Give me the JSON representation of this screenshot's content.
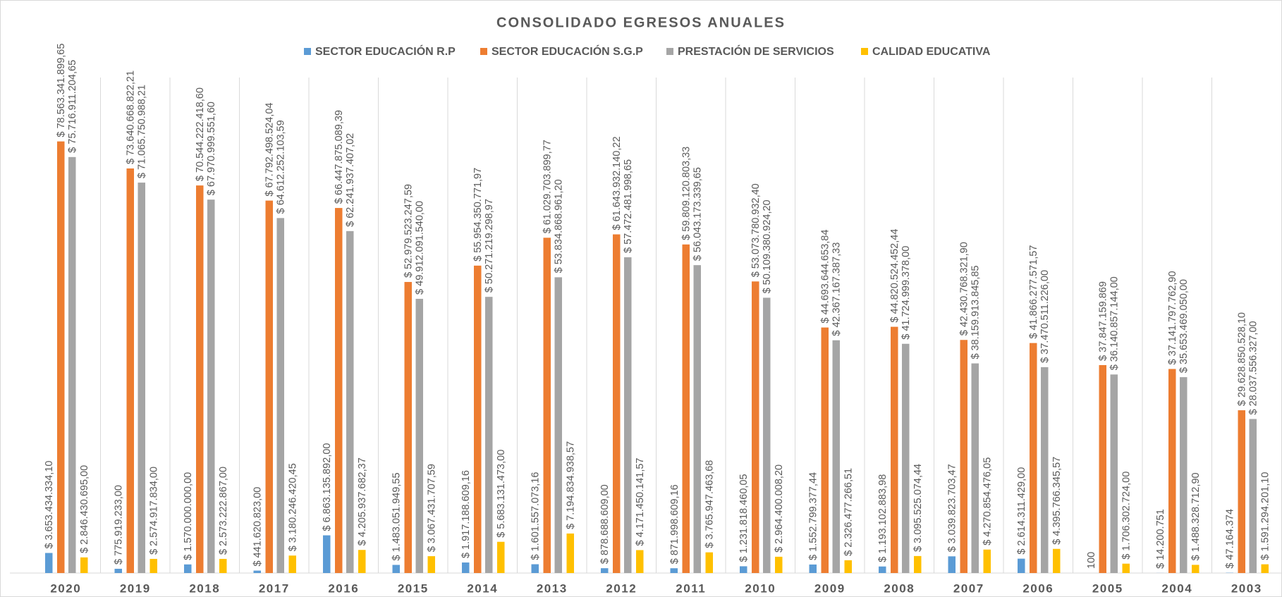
{
  "chart_data": {
    "type": "bar",
    "title": "CONSOLIDADO EGRESOS  ANUALES",
    "categories": [
      "2020",
      "2019",
      "2018",
      "2017",
      "2016",
      "2015",
      "2014",
      "2013",
      "2012",
      "2011",
      "2010",
      "2009",
      "2008",
      "2007",
      "2006",
      "2005",
      "2004",
      "2003"
    ],
    "legend": "top",
    "series": [
      {
        "name": "SECTOR EDUCACIÓN R.P",
        "color": "#5b9bd5",
        "values": [
          3653434334.1,
          775919233.0,
          1570000000.0,
          441620823.0,
          6863135892.0,
          1483051949.55,
          1917188609.16,
          1601557073.16,
          878688609.0,
          871998609.16,
          1231818460.05,
          1552799377.44,
          1193102883.98,
          3039823703.47,
          2614311429.0,
          100,
          14200751,
          47164374
        ],
        "value_labels": [
          "$ 3.653.434.334,10",
          "$ 775.919.233,00",
          "$ 1.570.000.000,00",
          "$ 441.620.823,00",
          "$ 6.863.135.892,00",
          "$ 1.483.051.949,55",
          "$ 1.917.188.609,16",
          "$ 1.601.557.073,16",
          "$ 878.688.609,00",
          "$ 871.998.609,16",
          "$ 1.231.818.460,05",
          "$ 1.552.799.377,44",
          "$ 1.193.102.883,98",
          "$ 3.039.823.703,47",
          "$ 2.614.311.429,00",
          "100",
          "$ 14.200.751",
          "$ 47.164.374"
        ]
      },
      {
        "name": "SECTOR EDUCACIÓN S.G.P",
        "color": "#ed7d31",
        "values": [
          78563341899.65,
          73640668822.21,
          70544222418.6,
          67792498524.04,
          66447875089.39,
          52979523247.59,
          55954350771.97,
          61029703899.77,
          61643932140.22,
          59809120803.33,
          53073780932.4,
          44693644653.84,
          44820524452.44,
          42430768321.9,
          41866277571.57,
          37847159869,
          37141797762.9,
          29628850528.1
        ],
        "value_labels": [
          "$ 78.563.341.899,65",
          "$ 73.640.668.822,21",
          "$ 70.544.222.418,60",
          "$ 67.792.498.524,04",
          "$ 66.447.875.089,39",
          "$ 52.979.523.247,59",
          "$ 55.954.350.771,97",
          "$ 61.029.703.899,77",
          "$ 61.643.932.140,22",
          "$ 59.809.120.803,33",
          "$ 53.073.780.932,40",
          "$ 44.693.644.653,84",
          "$ 44.820.524.452,44",
          "$ 42.430.768.321,90",
          "$ 41.866.277.571,57",
          "$ 37.847.159.869",
          "$ 37.141.797.762,90",
          "$ 29.628.850.528,10"
        ]
      },
      {
        "name": "PRESTACIÓN DE SERVICIOS",
        "color": "#a5a5a5",
        "values": [
          75716911204.65,
          71065750988.21,
          67970999551.6,
          64612252103.59,
          62241937407.02,
          49912091540.0,
          50271219298.97,
          53834868961.2,
          57472481998.65,
          56043173339.65,
          50109380924.2,
          42367167387.33,
          41724999378.0,
          38159913845.85,
          37470511226.0,
          36140857144.0,
          35653469050.0,
          28037556327.0
        ],
        "value_labels": [
          "$ 75.716.911.204,65",
          "$ 71.065.750.988,21",
          "$ 67.970.999.551,60",
          "$ 64.612.252.103,59",
          "$ 62.241.937.407,02",
          "$ 49.912.091.540,00",
          "$ 50.271.219.298,97",
          "$ 53.834.868.961,20",
          "$ 57.472.481.998,65",
          "$ 56.043.173.339,65",
          "$ 50.109.380.924,20",
          "$ 42.367.167.387,33",
          "$ 41.724.999.378,00",
          "$ 38.159.913.845,85",
          "$ 37.470.511.226,00",
          "$ 36.140.857.144,00",
          "$ 35.653.469.050,00",
          "$ 28.037.556.327,00"
        ]
      },
      {
        "name": "CALIDAD EDUCATIVA",
        "color": "#ffc000",
        "values": [
          2846430695.0,
          2574917834.0,
          2573222867.0,
          3180246420.45,
          4205937682.37,
          3067431707.59,
          5683131473.0,
          7194834938.57,
          4171450141.57,
          3765947463.68,
          2964400008.2,
          2326477266.51,
          3095525074.44,
          4270854476.05,
          4395766345.57,
          1706302724.0,
          1488328712.9,
          1591294201.1
        ],
        "value_labels": [
          "$ 2.846.430.695,00",
          "$ 2.574.917.834,00",
          "$ 2.573.222.867,00",
          "$ 3.180.246.420,45",
          "$ 4.205.937.682,37",
          "$ 3.067.431.707,59",
          "$ 5.683.131.473,00",
          "$ 7.194.834.938,57",
          "$ 4.171.450.141,57",
          "$ 3.765.947.463,68",
          "$ 2.964.400.008,20",
          "$ 2.326.477.266,51",
          "$ 3.095.525.074,44",
          "$ 4.270.854.476,05",
          "$ 4.395.766.345,57",
          "$ 1.706.302.724,00",
          "$ 1.488.328.712,90",
          "$ 1.591.294.201,10"
        ]
      }
    ]
  }
}
